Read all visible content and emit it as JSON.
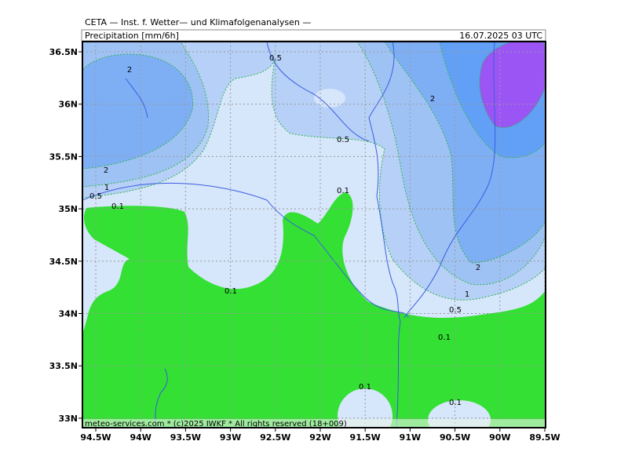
{
  "header": {
    "title": "CETA — Inst. f. Wetter— und Klimafolgenanalysen —",
    "parameter": "Precipitation [mm/6h]",
    "valid_time": "16.07.2025 03 UTC"
  },
  "map": {
    "lon_labels": [
      "94.5W",
      "94W",
      "93.5W",
      "93W",
      "92.5W",
      "92W",
      "91.5W",
      "91W",
      "90.5W",
      "90W",
      "89.5W"
    ],
    "lat_labels": [
      "36.5N",
      "36N",
      "35.5N",
      "35N",
      "34.5N",
      "34N",
      "33.5N",
      "33N"
    ],
    "contour_labels": [
      "0.5",
      "2",
      "2",
      "0.5",
      "2",
      "1",
      "0.5",
      "0.1",
      "0.1",
      "2",
      "0.1",
      "1",
      "0.5",
      "0.1",
      "0.1",
      "0.1"
    ],
    "footer": "meteo-services.com * (c)2025 IWKF * All rights reserved (18+009)"
  }
}
